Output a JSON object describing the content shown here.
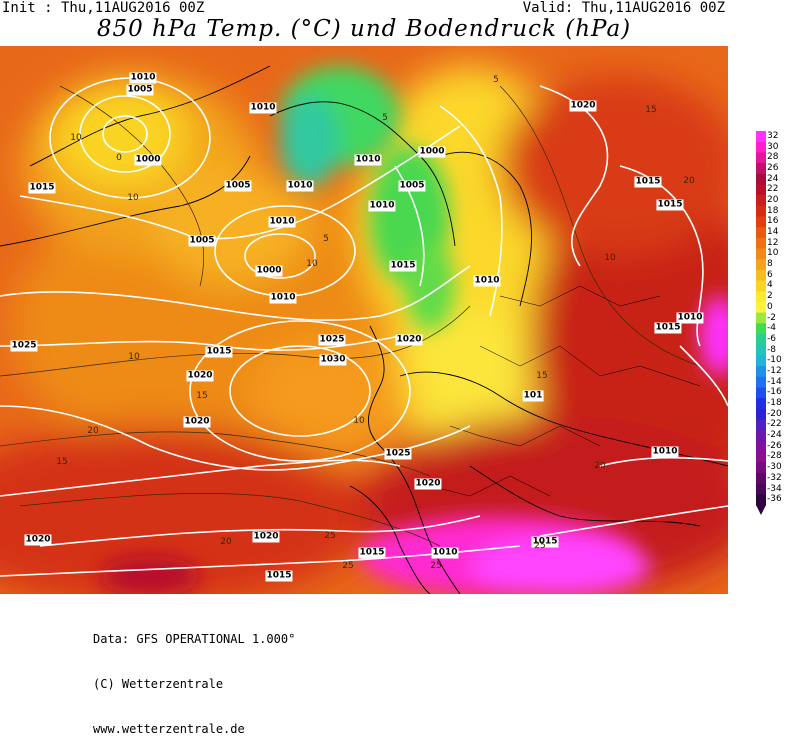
{
  "header": {
    "init": "Init : Thu,11AUG2016 00Z",
    "valid": "Valid: Thu,11AUG2016 00Z",
    "title": "850 hPa Temp. (°C) und Bodendruck (hPa)"
  },
  "footer": {
    "line1": "Data: GFS OPERATIONAL 1.000°",
    "line2": "(C) Wetterzentrale",
    "line3": "www.wetterzentrale.de"
  },
  "colorbar": {
    "labels": [
      "32",
      "30",
      "28",
      "26",
      "24",
      "22",
      "20",
      "18",
      "16",
      "14",
      "12",
      "10",
      "8",
      "6",
      "4",
      "2",
      "0",
      "-2",
      "-4",
      "-6",
      "-8",
      "-10",
      "-12",
      "-14",
      "-16",
      "-18",
      "-20",
      "-22",
      "-24",
      "-26",
      "-28",
      "-30",
      "-32",
      "-34",
      "-36"
    ],
    "colors": [
      "#ff33ff",
      "#ff22cc",
      "#e0189a",
      "#c0106a",
      "#a80c3c",
      "#b8102a",
      "#c81e1e",
      "#d42e12",
      "#e04010",
      "#e85a10",
      "#ef7010",
      "#f28a18",
      "#f6a21c",
      "#f8bc20",
      "#fad424",
      "#fcea2e",
      "#fff23a",
      "#9be840",
      "#40dc50",
      "#28d090",
      "#20c4b8",
      "#20b4d8",
      "#2090e8",
      "#2070f0",
      "#2050e8",
      "#2030e0",
      "#3020d0",
      "#5020c0",
      "#6a18b0",
      "#8210a0",
      "#8e0c90",
      "#7a0a80",
      "#60086a",
      "#4a0658",
      "#300440"
    ]
  },
  "map": {
    "pressure_labels": [
      "1010",
      "1005",
      "1010",
      "1000",
      "1010",
      "1015",
      "1005",
      "1005",
      "1000",
      "1010",
      "1015",
      "1000",
      "1020",
      "1015",
      "1005",
      "1010",
      "1015",
      "1010",
      "1025",
      "1015",
      "1020",
      "1025",
      "1020",
      "1030",
      "1010",
      "1015",
      "1020",
      "1025",
      "1010",
      "1020",
      "1020",
      "1015",
      "1010",
      "1015",
      "1015",
      "1020",
      "1010",
      "101",
      "1010"
    ],
    "temp_labels": [
      "10",
      "5",
      "0",
      "5",
      "10",
      "5",
      "10",
      "15",
      "10",
      "20",
      "10",
      "15",
      "10",
      "20",
      "25",
      "15",
      "20",
      "25",
      "15",
      "20",
      "25",
      "25"
    ]
  }
}
